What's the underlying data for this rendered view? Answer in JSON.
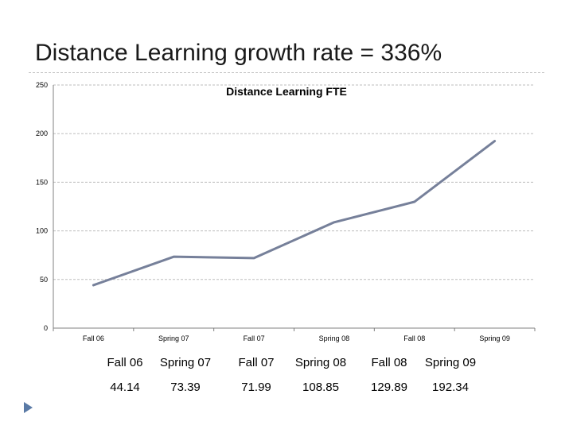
{
  "slide": {
    "title": "Distance Learning growth rate = 336%"
  },
  "table": {
    "headers": [
      "Fall 06",
      "Spring 07",
      "Fall 07",
      "Spring 08",
      "Fall 08",
      "Spring 09"
    ],
    "values": [
      "44.14",
      "73.39",
      "71.99",
      "108.85",
      "129.89",
      "192.34"
    ]
  },
  "chart_data": {
    "type": "line",
    "title": "Distance Learning FTE",
    "categories": [
      "Fall 06",
      "Spring 07",
      "Fall 07",
      "Spring 08",
      "Fall 08",
      "Spring 09"
    ],
    "series": [
      {
        "name": "Distance Learning FTE",
        "values": [
          44.14,
          73.39,
          71.99,
          108.85,
          129.89,
          192.34
        ]
      }
    ],
    "ylim": [
      0,
      250
    ],
    "yticks": [
      "0",
      "50",
      "100",
      "150",
      "200",
      "250"
    ],
    "xlabel": "",
    "ylabel": "",
    "grid": true,
    "line_color": "#76809a",
    "legend": "none"
  }
}
